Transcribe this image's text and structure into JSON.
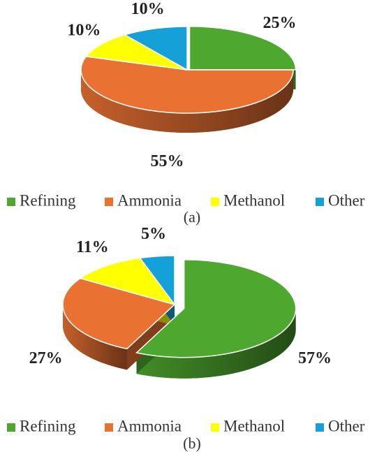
{
  "chart_data": [
    {
      "type": "pie",
      "caption": "(a)",
      "categories": [
        "Refining",
        "Ammonia",
        "Methanol",
        "Other"
      ],
      "values": [
        25,
        55,
        10,
        10
      ],
      "value_labels": [
        "25%",
        "55%",
        "10%",
        "10%"
      ],
      "colors": [
        "#4ea72e",
        "#e97132",
        "#ffff00",
        "#16a0d8"
      ],
      "legend": "bottom"
    },
    {
      "type": "pie",
      "caption": "(b)",
      "categories": [
        "Refining",
        "Ammonia",
        "Methanol",
        "Other"
      ],
      "values": [
        57,
        27,
        11,
        5
      ],
      "value_labels": [
        "57%",
        "27%",
        "11%",
        "5%"
      ],
      "colors": [
        "#4ea72e",
        "#e97132",
        "#ffff00",
        "#16a0d8"
      ],
      "legend": "bottom"
    }
  ]
}
